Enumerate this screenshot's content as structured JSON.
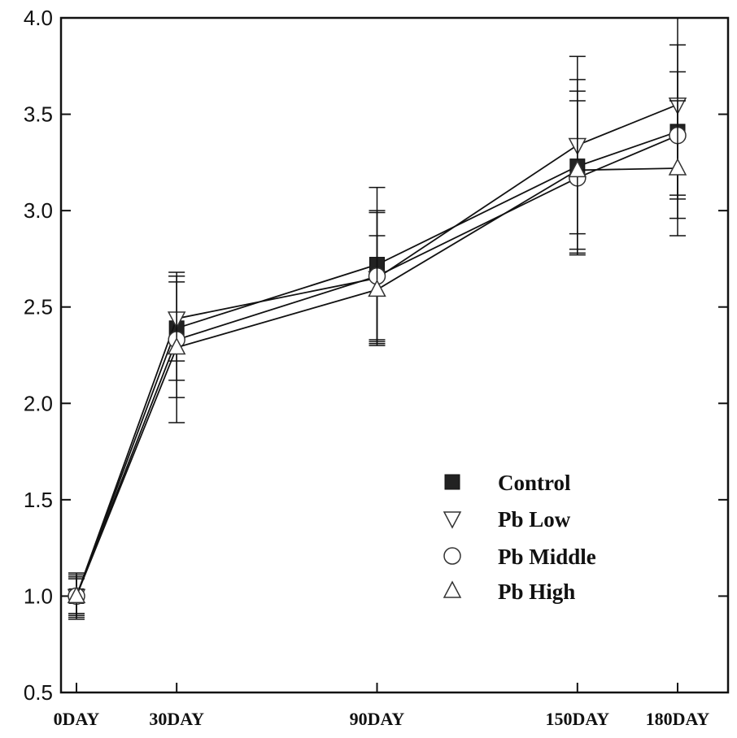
{
  "chart_data": {
    "type": "line",
    "title": "",
    "xlabel": "",
    "ylabel": "",
    "categories": [
      "0DAY",
      "30DAY",
      "90DAY",
      "150DAY",
      "180DAY"
    ],
    "x": [
      0,
      30,
      90,
      150,
      180
    ],
    "ylim": [
      0.5,
      4.0
    ],
    "yticks": [
      "0.5",
      "1.0",
      "1.5",
      "2.0",
      "2.5",
      "3.0",
      "3.5",
      "4.0"
    ],
    "grid": false,
    "legend_position": "bottom-right",
    "series": [
      {
        "name": "Control",
        "marker": "filled-square",
        "values": [
          1.0,
          2.39,
          2.72,
          3.23,
          3.41
        ],
        "errors": [
          0.1,
          0.27,
          0.4,
          0.45,
          0.45
        ]
      },
      {
        "name": "Pb Low",
        "marker": "open-triangle-down",
        "values": [
          1.0,
          2.44,
          2.65,
          3.34,
          3.55
        ],
        "errors": [
          0.11,
          0.22,
          0.35,
          0.46,
          0.47
        ]
      },
      {
        "name": "Pb Middle",
        "marker": "open-circle",
        "values": [
          1.0,
          2.33,
          2.66,
          3.17,
          3.39
        ],
        "errors": [
          0.09,
          0.3,
          0.33,
          0.4,
          0.33
        ]
      },
      {
        "name": "Pb High",
        "marker": "open-triangle-up",
        "values": [
          1.0,
          2.29,
          2.59,
          3.21,
          3.22
        ],
        "errors": [
          0.12,
          0.39,
          0.28,
          0.41,
          0.35
        ]
      }
    ]
  }
}
